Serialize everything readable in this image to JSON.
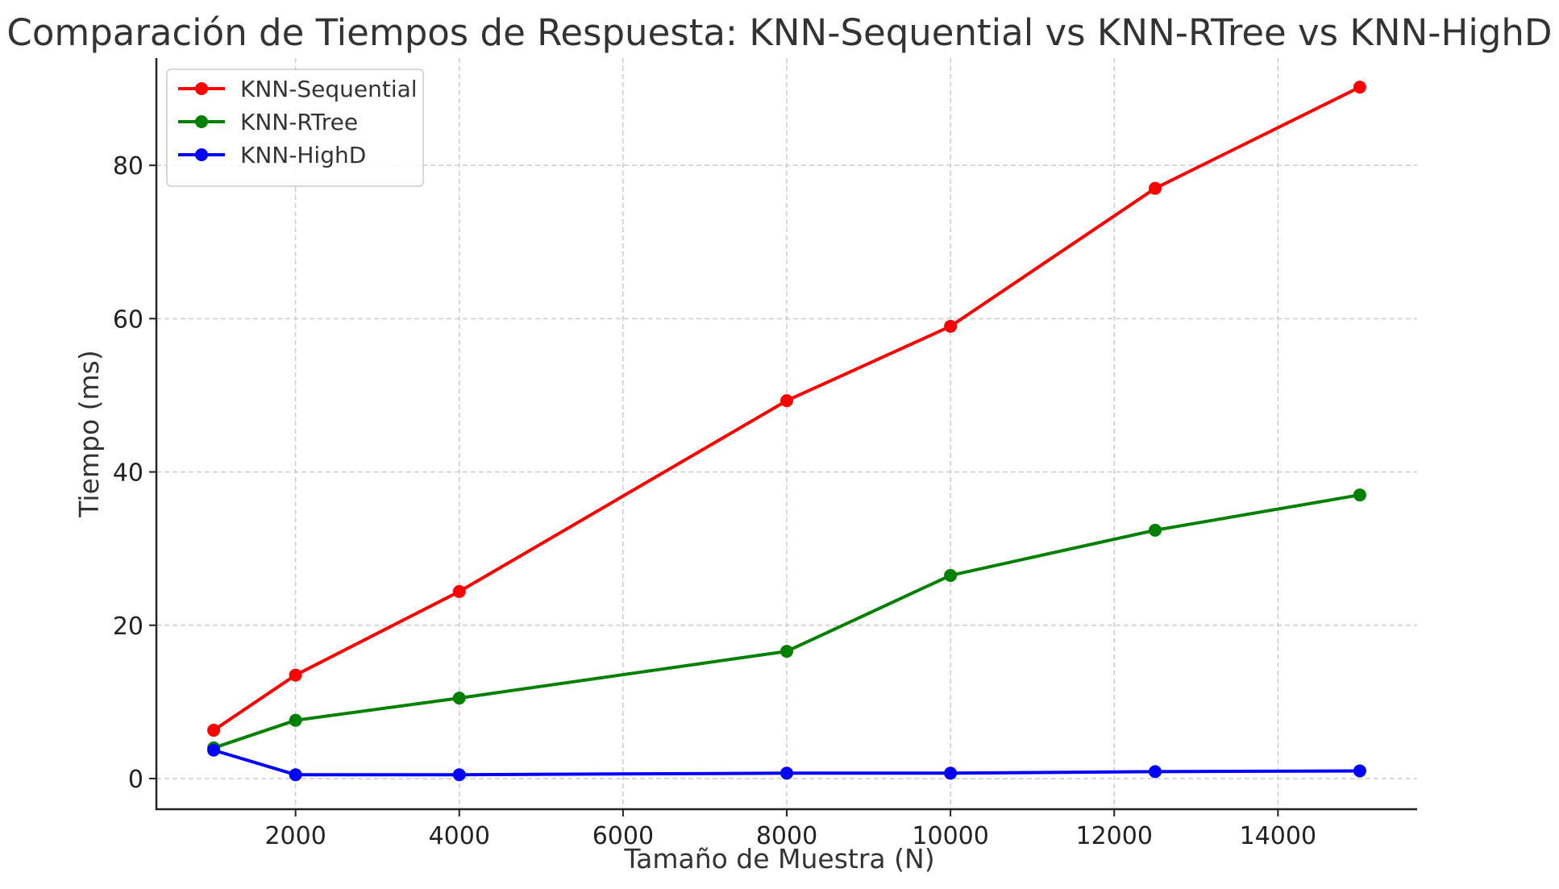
{
  "chart_data": {
    "type": "line",
    "title": "Comparación de Tiempos de Respuesta: KNN-Sequential vs KNN-RTree vs KNN-HighD",
    "xlabel": "Tamaño de Muestra (N)",
    "ylabel": "Tiempo (ms)",
    "x": [
      1000,
      2000,
      4000,
      8000,
      10000,
      12500,
      15000
    ],
    "xlim": [
      300,
      15700
    ],
    "ylim": [
      -4,
      94
    ],
    "xticks": [
      2000,
      4000,
      6000,
      8000,
      10000,
      12000,
      14000
    ],
    "yticks": [
      0,
      20,
      40,
      60,
      80
    ],
    "grid": true,
    "legend_position": "top-left",
    "series": [
      {
        "name": "KNN-Sequential",
        "color": "#ff0000",
        "values": [
          6.3,
          13.5,
          24.4,
          49.3,
          59.0,
          77.0,
          90.2
        ]
      },
      {
        "name": "KNN-RTree",
        "color": "#008000",
        "values": [
          4.0,
          7.6,
          10.5,
          16.6,
          26.5,
          32.4,
          37.0
        ]
      },
      {
        "name": "KNN-HighD",
        "color": "#0000ff",
        "values": [
          3.7,
          0.5,
          0.5,
          0.7,
          0.7,
          0.9,
          1.0
        ]
      }
    ]
  }
}
